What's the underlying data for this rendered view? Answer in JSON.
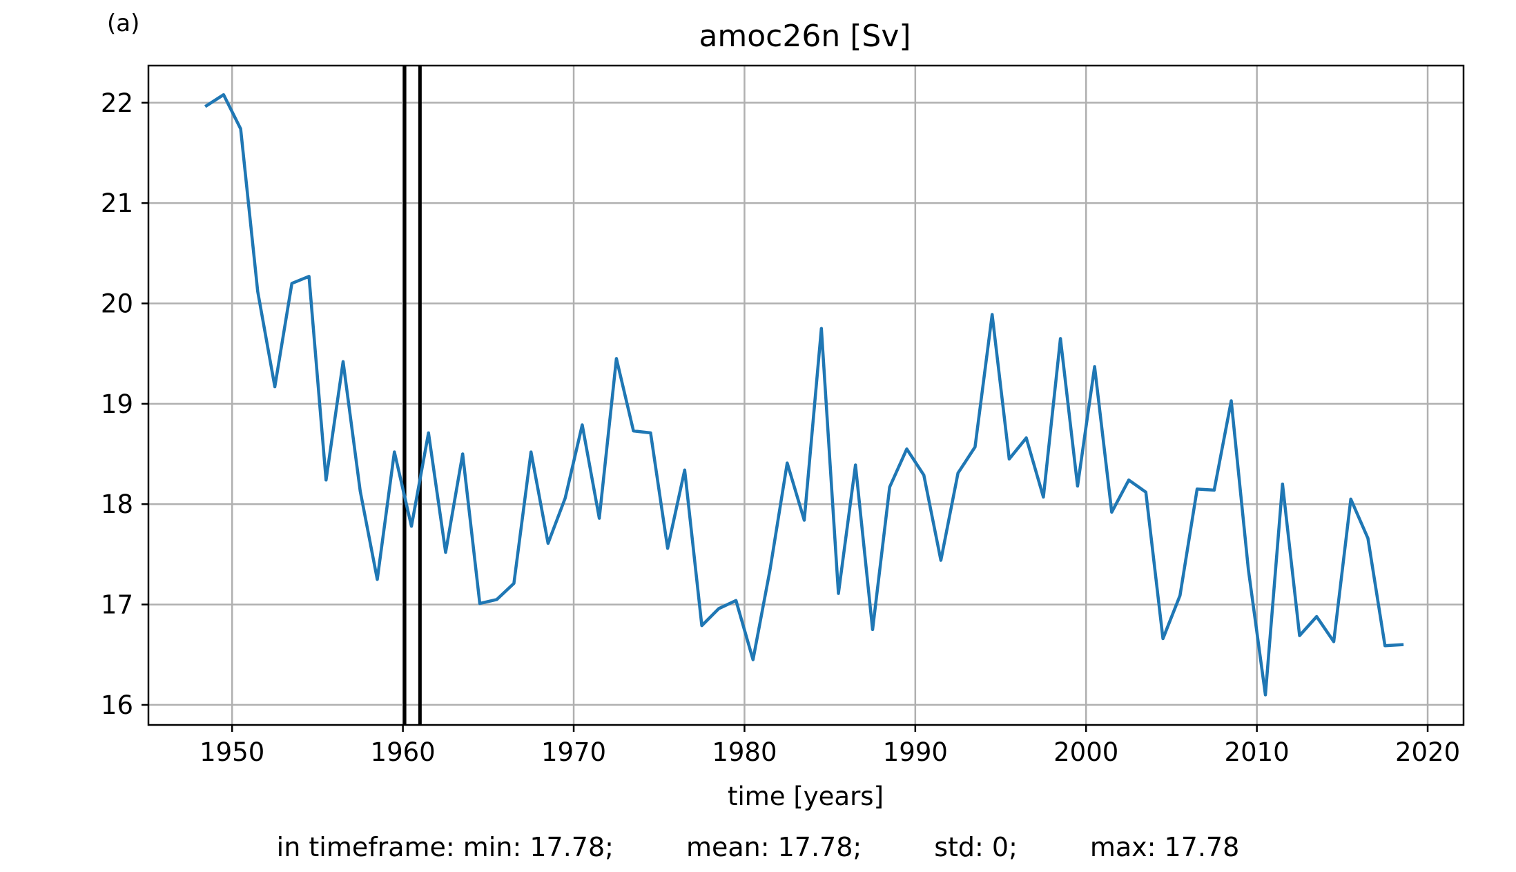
{
  "panel_label": "(a)",
  "chart_data": {
    "type": "line",
    "title": "amoc26n [Sv]",
    "xlabel": "time [years]",
    "ylabel": "",
    "xlim": [
      1945.1,
      2022.1
    ],
    "ylim": [
      15.8,
      22.37
    ],
    "xticks": [
      1950,
      1960,
      1970,
      1980,
      1990,
      2000,
      2010,
      2020
    ],
    "yticks": [
      16,
      17,
      18,
      19,
      20,
      21,
      22
    ],
    "grid": true,
    "line_color": "#1f77b4",
    "marker_color": "#000000",
    "vertical_markers": [
      1960.1,
      1961.0
    ],
    "series": [
      {
        "x": [
          1948.5,
          1949.5,
          1950.5,
          1951.5,
          1952.5,
          1953.5,
          1954.5,
          1955.5,
          1956.5,
          1957.5,
          1958.5,
          1959.5,
          1960.5,
          1961.5,
          1962.5,
          1963.5,
          1964.5,
          1965.5,
          1966.5,
          1967.5,
          1968.5,
          1969.5,
          1970.5,
          1971.5,
          1972.5,
          1973.5,
          1974.5,
          1975.5,
          1976.5,
          1977.5,
          1978.5,
          1979.5,
          1980.5,
          1981.5,
          1982.5,
          1983.5,
          1984.5,
          1985.5,
          1986.5,
          1987.5,
          1988.5,
          1989.5,
          1990.5,
          1991.5,
          1992.5,
          1993.5,
          1994.5,
          1995.5,
          1996.5,
          1997.5,
          1998.5,
          1999.5,
          2000.5,
          2001.5,
          2002.5,
          2003.5,
          2004.5,
          2005.5,
          2006.5,
          2007.5,
          2008.5,
          2009.5,
          2010.5,
          2011.5,
          2012.5,
          2013.5,
          2014.5,
          2015.5,
          2016.5,
          2017.5,
          2018.5
        ],
        "y": [
          21.97,
          22.08,
          21.74,
          20.12,
          19.17,
          20.2,
          20.27,
          18.24,
          19.42,
          18.13,
          17.25,
          18.52,
          17.78,
          18.71,
          17.52,
          18.5,
          17.01,
          17.05,
          17.21,
          18.52,
          17.61,
          18.06,
          18.79,
          17.86,
          19.45,
          18.73,
          18.71,
          17.56,
          18.34,
          16.79,
          16.96,
          17.04,
          16.45,
          17.35,
          18.41,
          17.84,
          19.75,
          17.11,
          18.39,
          16.75,
          18.17,
          18.55,
          18.29,
          17.44,
          18.31,
          18.57,
          19.89,
          18.45,
          18.66,
          18.07,
          19.65,
          18.18,
          19.37,
          17.92,
          18.24,
          18.12,
          16.66,
          17.09,
          18.15,
          18.14,
          19.03,
          17.35,
          16.1,
          18.2,
          16.69,
          16.88,
          16.63,
          18.05,
          17.66,
          16.59,
          16.6
        ]
      }
    ]
  },
  "stats": {
    "min": "in timeframe: min: 17.78;",
    "mean": "mean: 17.78;",
    "std": "std: 0;",
    "max": "max: 17.78"
  }
}
